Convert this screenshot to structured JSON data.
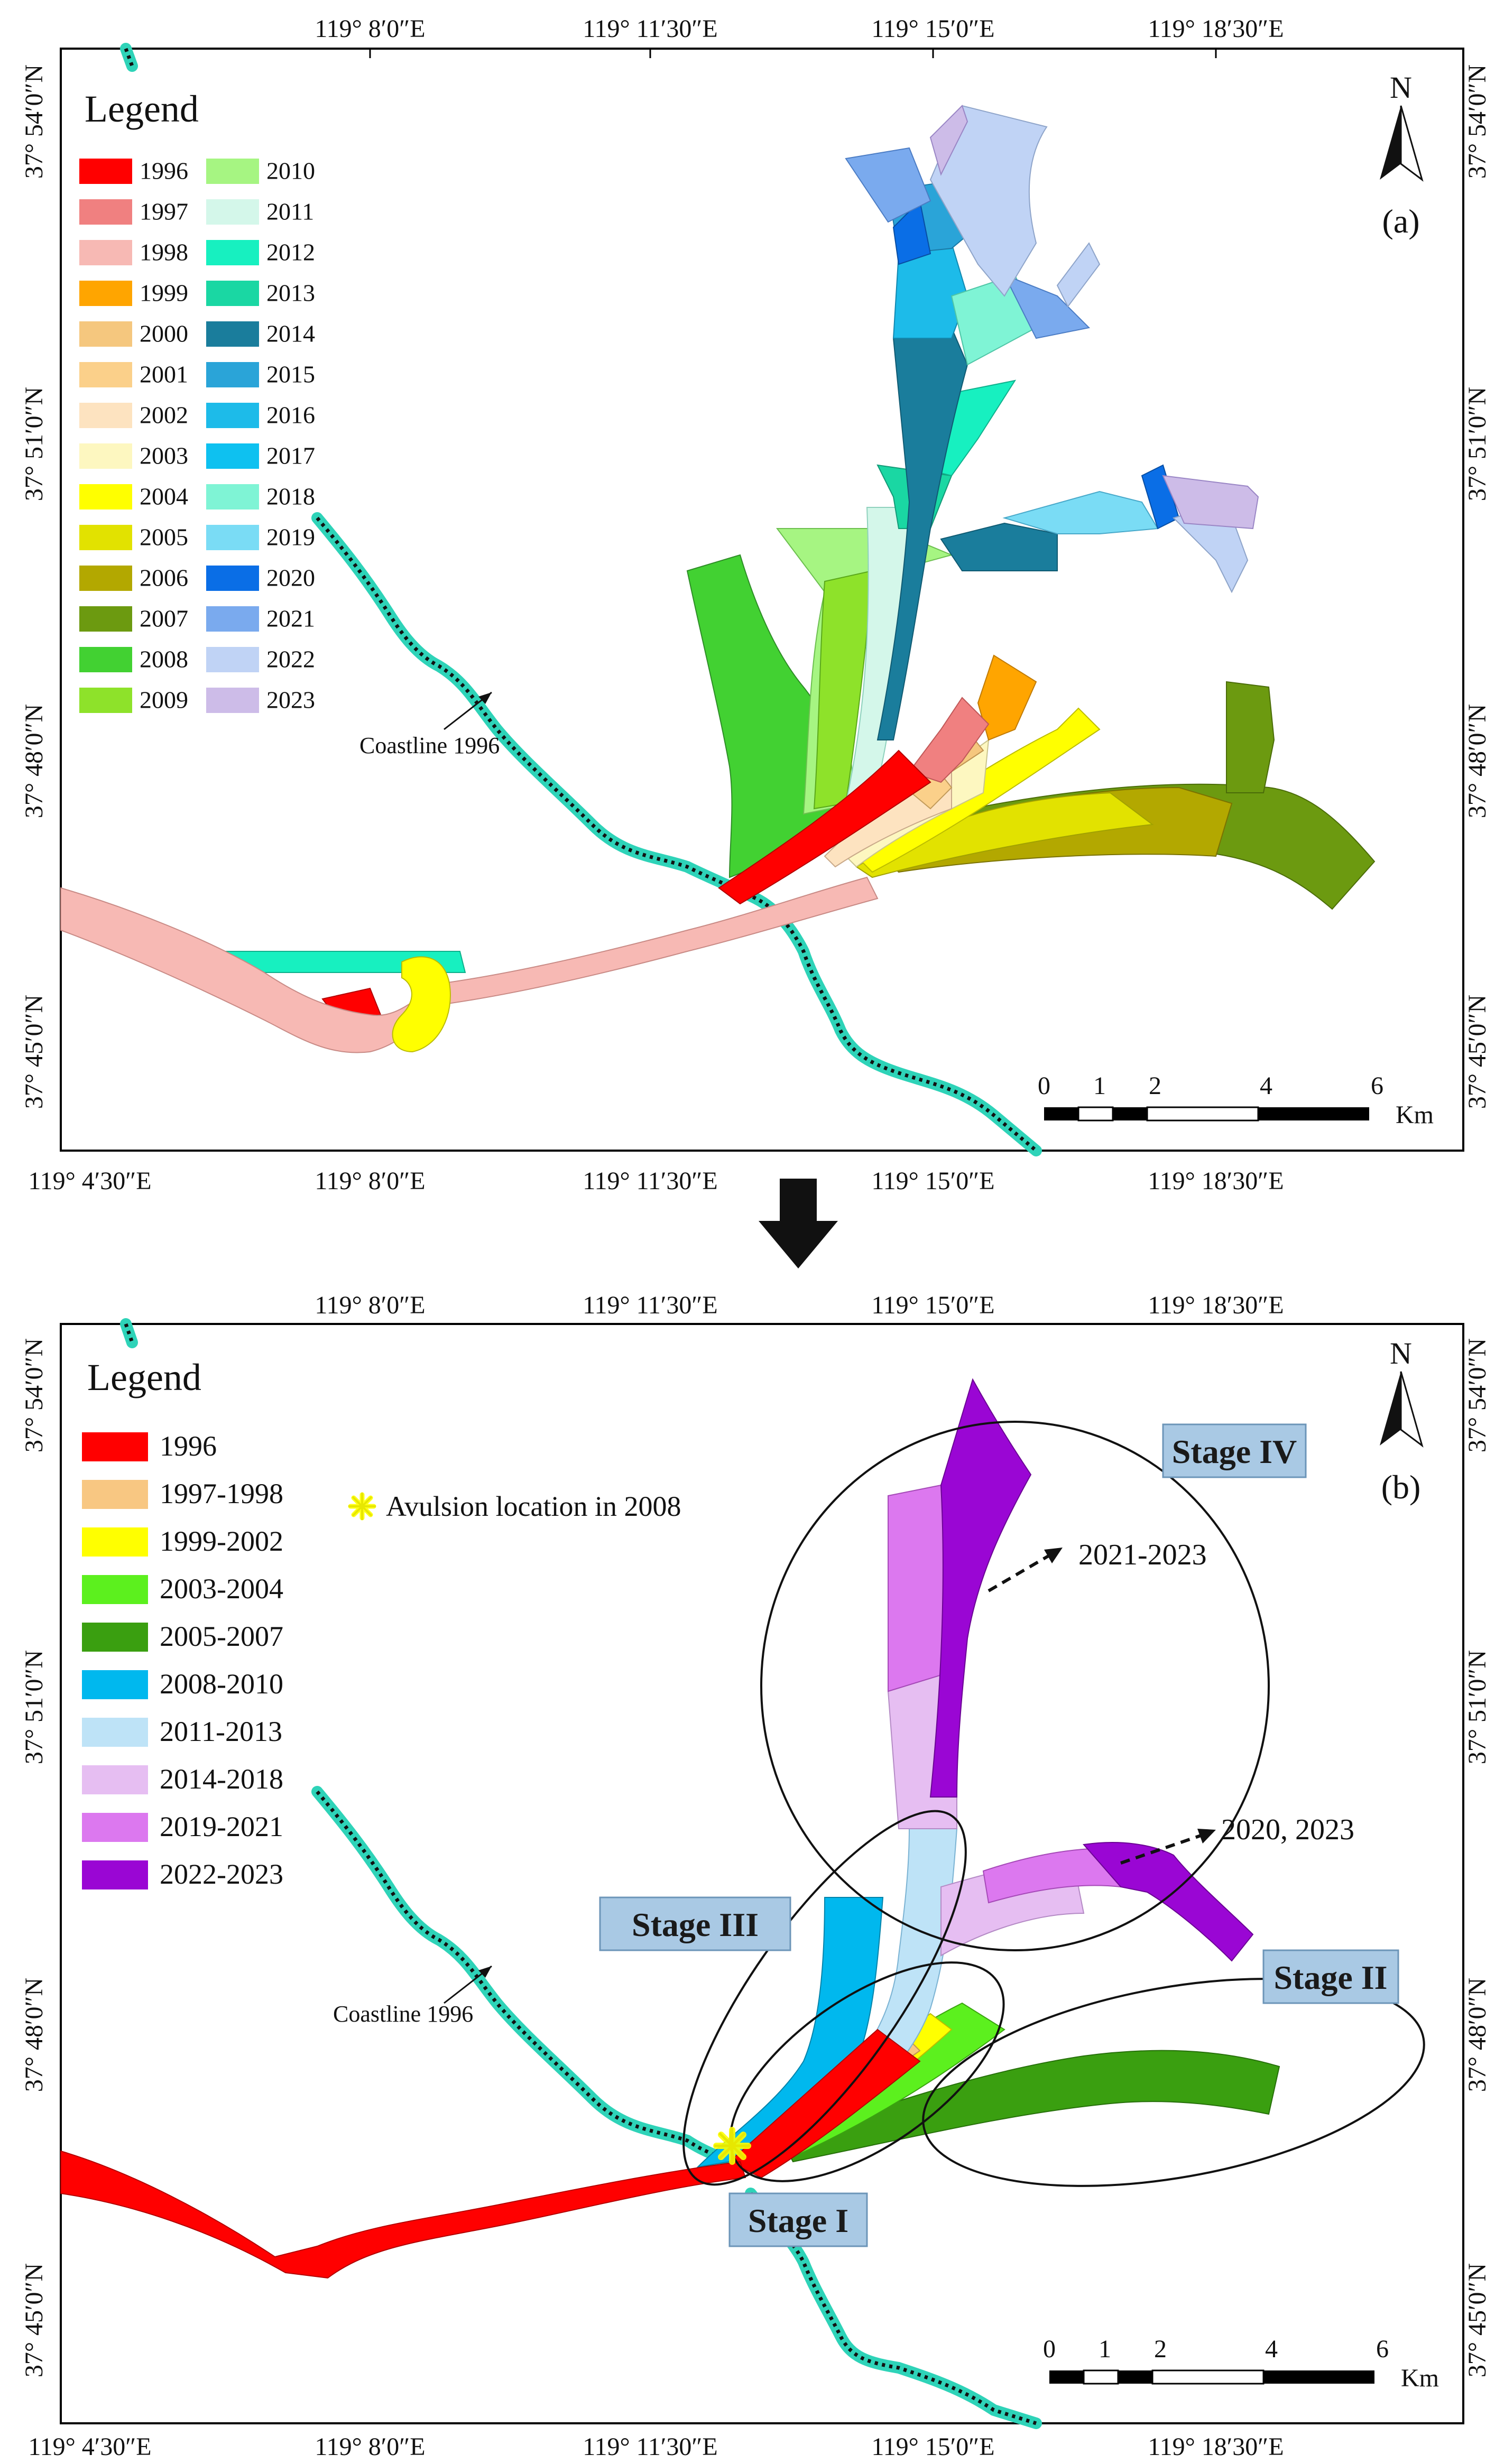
{
  "panel_a": {
    "label": "(a)",
    "north": "N",
    "legend_title": "Legend",
    "legend_left": [
      {
        "year": "1996",
        "color": "#ff0000"
      },
      {
        "year": "1997",
        "color": "#f08080"
      },
      {
        "year": "1998",
        "color": "#f7b9b4"
      },
      {
        "year": "1999",
        "color": "#ffa500"
      },
      {
        "year": "2000",
        "color": "#f5c77e"
      },
      {
        "year": "2001",
        "color": "#fbd08a"
      },
      {
        "year": "2002",
        "color": "#fde3c0"
      },
      {
        "year": "2003",
        "color": "#fdf7c0"
      },
      {
        "year": "2004",
        "color": "#ffff00"
      },
      {
        "year": "2005",
        "color": "#e2e200"
      },
      {
        "year": "2006",
        "color": "#b3a800"
      },
      {
        "year": "2007",
        "color": "#6c9a10"
      },
      {
        "year": "2008",
        "color": "#42d132"
      },
      {
        "year": "2009",
        "color": "#8ee22a"
      }
    ],
    "legend_right": [
      {
        "year": "2010",
        "color": "#a6f582"
      },
      {
        "year": "2011",
        "color": "#d4f7ea"
      },
      {
        "year": "2012",
        "color": "#17f0c0"
      },
      {
        "year": "2013",
        "color": "#1ad7a3"
      },
      {
        "year": "2014",
        "color": "#1a7d9c"
      },
      {
        "year": "2015",
        "color": "#2aa4d8"
      },
      {
        "year": "2016",
        "color": "#1dbbe9"
      },
      {
        "year": "2017",
        "color": "#0ec1f0"
      },
      {
        "year": "2018",
        "color": "#7ff4d5"
      },
      {
        "year": "2019",
        "color": "#7adcf5"
      },
      {
        "year": "2020",
        "color": "#0a6ee6"
      },
      {
        "year": "2021",
        "color": "#7aaaee"
      },
      {
        "year": "2022",
        "color": "#c0d3f5"
      },
      {
        "year": "2023",
        "color": "#cdbce8"
      }
    ],
    "coastline_label": "Coastline 1996"
  },
  "panel_b": {
    "label": "(b)",
    "north": "N",
    "legend_title": "Legend",
    "legend": [
      {
        "period": "1996",
        "color": "#ff0000"
      },
      {
        "period": "1997-1998",
        "color": "#f8c782"
      },
      {
        "period": "1999-2002",
        "color": "#ffff00"
      },
      {
        "period": "2003-2004",
        "color": "#5cf01e"
      },
      {
        "period": "2005-2007",
        "color": "#3a9f10"
      },
      {
        "period": "2008-2010",
        "color": "#00b8ee"
      },
      {
        "period": "2011-2013",
        "color": "#bee3f7"
      },
      {
        "period": "2014-2018",
        "color": "#e6bef2"
      },
      {
        "period": "2019-2021",
        "color": "#dc78ef"
      },
      {
        "period": "2022-2023",
        "color": "#9a06d4"
      }
    ],
    "avulsion_label": "Avulsion location in 2008",
    "stages": [
      "Stage I",
      "Stage II",
      "Stage III",
      "Stage IV"
    ],
    "annotations": [
      "2021-2023",
      "2020, 2023"
    ],
    "coastline_label": "Coastline 1996"
  },
  "axes": {
    "lon_ticks_top": [
      "119° 8′0″E",
      "119° 11′30″E",
      "119° 15′0″E",
      "119° 18′30″E"
    ],
    "lon_ticks_bottom": [
      "119° 4′30″E",
      "119° 8′0″E",
      "119° 11′30″E",
      "119° 15′0″E",
      "119° 18′30″E"
    ],
    "lat_ticks": [
      "37° 54′0″N",
      "37° 51′0″N",
      "37° 48′0″N",
      "37° 45′0″N"
    ]
  },
  "scale_bar": {
    "labels": [
      "0",
      "1",
      "2",
      "4",
      "6"
    ],
    "unit": "Km"
  },
  "colors": {
    "coastline": "#2ed3b8",
    "frame": "#000000"
  }
}
